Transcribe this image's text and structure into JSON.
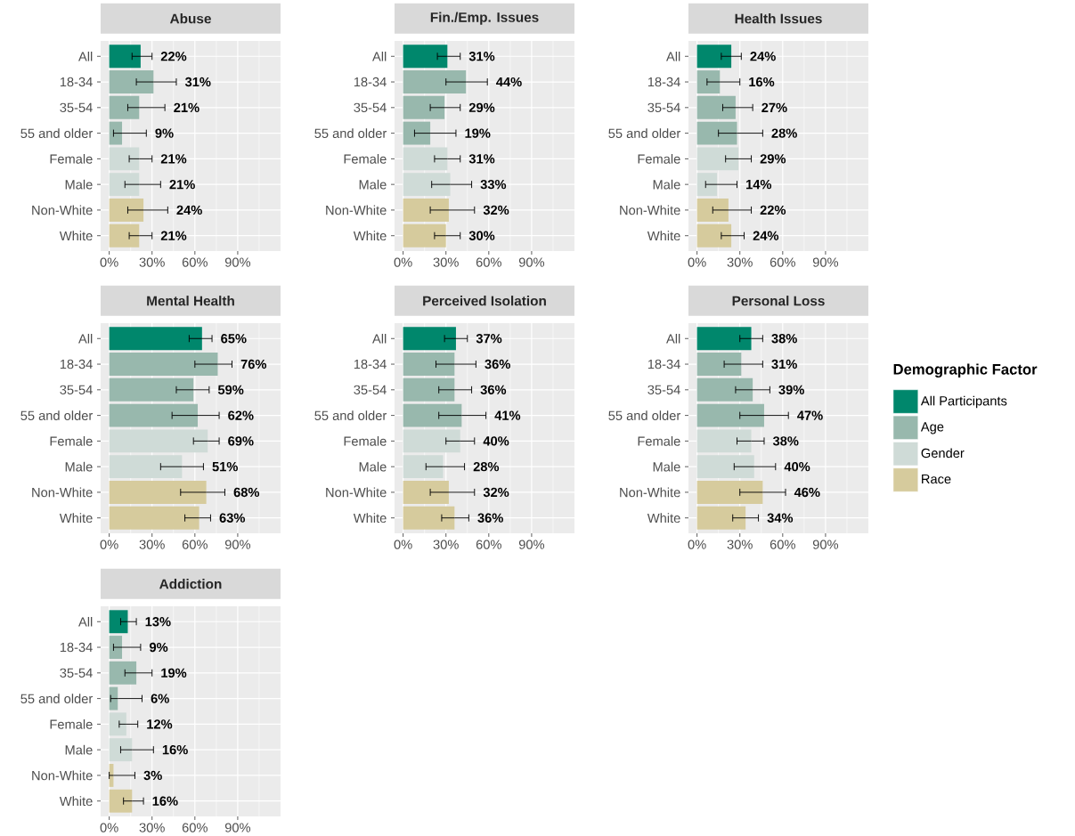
{
  "chart_data": [
    {
      "type": "bar",
      "orientation": "horizontal",
      "title": "Abuse",
      "categories": [
        "All",
        "18-34",
        "35-54",
        "55 and older",
        "Female",
        "Male",
        "Non-White",
        "White"
      ],
      "xlim": [
        -6,
        120
      ],
      "xticks": [
        {
          "value": 0,
          "label": "0%"
        },
        {
          "value": 30,
          "label": "30%"
        },
        {
          "value": 60,
          "label": "60%"
        },
        {
          "value": 90,
          "label": "90%"
        }
      ],
      "grid": true,
      "series": [
        {
          "color": "#00876c",
          "values": [
            22,
            null,
            null,
            null,
            null,
            null,
            null,
            null
          ],
          "errors": [
            [
              16,
              30
            ],
            null,
            null,
            null,
            null,
            null,
            null,
            null
          ],
          "value_labels": [
            "22%",
            null,
            null,
            null,
            null,
            null,
            null,
            null
          ]
        },
        {
          "color": "#98b8ad",
          "values": [
            null,
            31,
            21,
            9,
            null,
            null,
            null,
            null
          ],
          "errors": [
            null,
            [
              19,
              47
            ],
            [
              13,
              39
            ],
            [
              3,
              26
            ],
            null,
            null,
            null,
            null
          ],
          "value_labels": [
            null,
            "31%",
            "21%",
            "9%",
            null,
            null,
            null,
            null
          ]
        },
        {
          "color": "#cfdbd7",
          "values": [
            null,
            null,
            null,
            null,
            21,
            21,
            null,
            null
          ],
          "errors": [
            null,
            null,
            null,
            null,
            [
              14,
              30
            ],
            [
              11,
              36
            ],
            null,
            null
          ],
          "value_labels": [
            null,
            null,
            null,
            null,
            "21%",
            "21%",
            null,
            null
          ]
        },
        {
          "color": "#d6cb9d",
          "values": [
            null,
            null,
            null,
            null,
            null,
            null,
            24,
            21
          ],
          "errors": [
            null,
            null,
            null,
            null,
            null,
            null,
            [
              13,
              41
            ],
            [
              14,
              30
            ]
          ],
          "value_labels": [
            null,
            null,
            null,
            null,
            null,
            null,
            "24%",
            "21%"
          ]
        }
      ]
    },
    {
      "type": "bar",
      "orientation": "horizontal",
      "title": "Fin./Emp. Issues",
      "categories": [
        "All",
        "18-34",
        "35-54",
        "55 and older",
        "Female",
        "Male",
        "Non-White",
        "White"
      ],
      "xlim": [
        -6,
        120
      ],
      "xticks": [
        {
          "value": 0,
          "label": "0%"
        },
        {
          "value": 30,
          "label": "30%"
        },
        {
          "value": 60,
          "label": "60%"
        },
        {
          "value": 90,
          "label": "90%"
        }
      ],
      "grid": true,
      "series": [
        {
          "color": "#00876c",
          "values": [
            31,
            null,
            null,
            null,
            null,
            null,
            null,
            null
          ],
          "errors": [
            [
              24,
              40
            ],
            null,
            null,
            null,
            null,
            null,
            null,
            null
          ],
          "value_labels": [
            "31%",
            null,
            null,
            null,
            null,
            null,
            null,
            null
          ]
        },
        {
          "color": "#98b8ad",
          "values": [
            null,
            44,
            29,
            19,
            null,
            null,
            null,
            null
          ],
          "errors": [
            null,
            [
              30,
              59
            ],
            [
              19,
              40
            ],
            [
              8,
              37
            ],
            null,
            null,
            null,
            null
          ],
          "value_labels": [
            null,
            "44%",
            "29%",
            "19%",
            null,
            null,
            null,
            null
          ]
        },
        {
          "color": "#cfdbd7",
          "values": [
            null,
            null,
            null,
            null,
            31,
            33,
            null,
            null
          ],
          "errors": [
            null,
            null,
            null,
            null,
            [
              22,
              40
            ],
            [
              20,
              48
            ],
            null,
            null
          ],
          "value_labels": [
            null,
            null,
            null,
            null,
            "31%",
            "33%",
            null,
            null
          ]
        },
        {
          "color": "#d6cb9d",
          "values": [
            null,
            null,
            null,
            null,
            null,
            null,
            32,
            30
          ],
          "errors": [
            null,
            null,
            null,
            null,
            null,
            null,
            [
              19,
              50
            ],
            [
              22,
              40
            ]
          ],
          "value_labels": [
            null,
            null,
            null,
            null,
            null,
            null,
            "32%",
            "30%"
          ]
        }
      ]
    },
    {
      "type": "bar",
      "orientation": "horizontal",
      "title": "Health Issues",
      "categories": [
        "All",
        "18-34",
        "35-54",
        "55 and older",
        "Female",
        "Male",
        "Non-White",
        "White"
      ],
      "xlim": [
        -6,
        120
      ],
      "xticks": [
        {
          "value": 0,
          "label": "0%"
        },
        {
          "value": 30,
          "label": "30%"
        },
        {
          "value": 60,
          "label": "60%"
        },
        {
          "value": 90,
          "label": "90%"
        }
      ],
      "grid": true,
      "series": [
        {
          "color": "#00876c",
          "values": [
            24,
            null,
            null,
            null,
            null,
            null,
            null,
            null
          ],
          "errors": [
            [
              17,
              31
            ],
            null,
            null,
            null,
            null,
            null,
            null,
            null
          ],
          "value_labels": [
            "24%",
            null,
            null,
            null,
            null,
            null,
            null,
            null
          ]
        },
        {
          "color": "#98b8ad",
          "values": [
            null,
            16,
            27,
            28,
            null,
            null,
            null,
            null
          ],
          "errors": [
            null,
            [
              7,
              30
            ],
            [
              18,
              39
            ],
            [
              15,
              46
            ],
            null,
            null,
            null,
            null
          ],
          "value_labels": [
            null,
            "16%",
            "27%",
            "28%",
            null,
            null,
            null,
            null
          ]
        },
        {
          "color": "#cfdbd7",
          "values": [
            null,
            null,
            null,
            null,
            29,
            14,
            null,
            null
          ],
          "errors": [
            null,
            null,
            null,
            null,
            [
              20,
              38
            ],
            [
              6,
              28
            ],
            null,
            null
          ],
          "value_labels": [
            null,
            null,
            null,
            null,
            "29%",
            "14%",
            null,
            null
          ]
        },
        {
          "color": "#d6cb9d",
          "values": [
            null,
            null,
            null,
            null,
            null,
            null,
            22,
            24
          ],
          "errors": [
            null,
            null,
            null,
            null,
            null,
            null,
            [
              11,
              38
            ],
            [
              17,
              33
            ]
          ],
          "value_labels": [
            null,
            null,
            null,
            null,
            null,
            null,
            "22%",
            "24%"
          ]
        }
      ]
    },
    {
      "type": "bar",
      "orientation": "horizontal",
      "title": "Mental Health",
      "categories": [
        "All",
        "18-34",
        "35-54",
        "55 and older",
        "Female",
        "Male",
        "Non-White",
        "White"
      ],
      "xlim": [
        -6,
        120
      ],
      "xticks": [
        {
          "value": 0,
          "label": "0%"
        },
        {
          "value": 30,
          "label": "30%"
        },
        {
          "value": 60,
          "label": "60%"
        },
        {
          "value": 90,
          "label": "90%"
        }
      ],
      "grid": true,
      "series": [
        {
          "color": "#00876c",
          "values": [
            65,
            null,
            null,
            null,
            null,
            null,
            null,
            null
          ],
          "errors": [
            [
              56,
              72
            ],
            null,
            null,
            null,
            null,
            null,
            null,
            null
          ],
          "value_labels": [
            "65%",
            null,
            null,
            null,
            null,
            null,
            null,
            null
          ]
        },
        {
          "color": "#98b8ad",
          "values": [
            null,
            76,
            59,
            62,
            null,
            null,
            null,
            null
          ],
          "errors": [
            null,
            [
              60,
              86
            ],
            [
              47,
              70
            ],
            [
              44,
              77
            ],
            null,
            null,
            null,
            null
          ],
          "value_labels": [
            null,
            "76%",
            "59%",
            "62%",
            null,
            null,
            null,
            null
          ]
        },
        {
          "color": "#cfdbd7",
          "values": [
            null,
            null,
            null,
            null,
            69,
            51,
            null,
            null
          ],
          "errors": [
            null,
            null,
            null,
            null,
            [
              59,
              77
            ],
            [
              36,
              66
            ],
            null,
            null
          ],
          "value_labels": [
            null,
            null,
            null,
            null,
            "69%",
            "51%",
            null,
            null
          ]
        },
        {
          "color": "#d6cb9d",
          "values": [
            null,
            null,
            null,
            null,
            null,
            null,
            68,
            63
          ],
          "errors": [
            null,
            null,
            null,
            null,
            null,
            null,
            [
              50,
              81
            ],
            [
              53,
              71
            ]
          ],
          "value_labels": [
            null,
            null,
            null,
            null,
            null,
            null,
            "68%",
            "63%"
          ]
        }
      ]
    },
    {
      "type": "bar",
      "orientation": "horizontal",
      "title": "Perceived Isolation",
      "categories": [
        "All",
        "18-34",
        "35-54",
        "55 and older",
        "Female",
        "Male",
        "Non-White",
        "White"
      ],
      "xlim": [
        -6,
        120
      ],
      "xticks": [
        {
          "value": 0,
          "label": "0%"
        },
        {
          "value": 30,
          "label": "30%"
        },
        {
          "value": 60,
          "label": "60%"
        },
        {
          "value": 90,
          "label": "90%"
        }
      ],
      "grid": true,
      "series": [
        {
          "color": "#00876c",
          "values": [
            37,
            null,
            null,
            null,
            null,
            null,
            null,
            null
          ],
          "errors": [
            [
              29,
              45
            ],
            null,
            null,
            null,
            null,
            null,
            null,
            null
          ],
          "value_labels": [
            "37%",
            null,
            null,
            null,
            null,
            null,
            null,
            null
          ]
        },
        {
          "color": "#98b8ad",
          "values": [
            null,
            36,
            36,
            41,
            null,
            null,
            null,
            null
          ],
          "errors": [
            null,
            [
              23,
              51
            ],
            [
              25,
              48
            ],
            [
              25,
              58
            ],
            null,
            null,
            null,
            null
          ],
          "value_labels": [
            null,
            "36%",
            "36%",
            "41%",
            null,
            null,
            null,
            null
          ]
        },
        {
          "color": "#cfdbd7",
          "values": [
            null,
            null,
            null,
            null,
            40,
            28,
            null,
            null
          ],
          "errors": [
            null,
            null,
            null,
            null,
            [
              30,
              50
            ],
            [
              16,
              43
            ],
            null,
            null
          ],
          "value_labels": [
            null,
            null,
            null,
            null,
            "40%",
            "28%",
            null,
            null
          ]
        },
        {
          "color": "#d6cb9d",
          "values": [
            null,
            null,
            null,
            null,
            null,
            null,
            32,
            36
          ],
          "errors": [
            null,
            null,
            null,
            null,
            null,
            null,
            [
              19,
              50
            ],
            [
              27,
              46
            ]
          ],
          "value_labels": [
            null,
            null,
            null,
            null,
            null,
            null,
            "32%",
            "36%"
          ]
        }
      ]
    },
    {
      "type": "bar",
      "orientation": "horizontal",
      "title": "Personal Loss",
      "categories": [
        "All",
        "18-34",
        "35-54",
        "55 and older",
        "Female",
        "Male",
        "Non-White",
        "White"
      ],
      "xlim": [
        -6,
        120
      ],
      "xticks": [
        {
          "value": 0,
          "label": "0%"
        },
        {
          "value": 30,
          "label": "30%"
        },
        {
          "value": 60,
          "label": "60%"
        },
        {
          "value": 90,
          "label": "90%"
        }
      ],
      "grid": true,
      "legend": "right",
      "legend_title": "Demographic Factor",
      "series": [
        {
          "name": "All Participants",
          "color": "#00876c",
          "values": [
            38,
            null,
            null,
            null,
            null,
            null,
            null,
            null
          ],
          "errors": [
            [
              30,
              46
            ],
            null,
            null,
            null,
            null,
            null,
            null,
            null
          ],
          "value_labels": [
            "38%",
            null,
            null,
            null,
            null,
            null,
            null,
            null
          ]
        },
        {
          "name": "Age",
          "color": "#98b8ad",
          "values": [
            null,
            31,
            39,
            47,
            null,
            null,
            null,
            null
          ],
          "errors": [
            null,
            [
              19,
              46
            ],
            [
              27,
              51
            ],
            [
              30,
              64
            ],
            null,
            null,
            null,
            null
          ],
          "value_labels": [
            null,
            "31%",
            "39%",
            "47%",
            null,
            null,
            null,
            null
          ]
        },
        {
          "name": "Gender",
          "color": "#cfdbd7",
          "values": [
            null,
            null,
            null,
            null,
            38,
            40,
            null,
            null
          ],
          "errors": [
            null,
            null,
            null,
            null,
            [
              28,
              47
            ],
            [
              26,
              55
            ],
            null,
            null
          ],
          "value_labels": [
            null,
            null,
            null,
            null,
            "38%",
            "40%",
            null,
            null
          ]
        },
        {
          "name": "Race",
          "color": "#d6cb9d",
          "values": [
            null,
            null,
            null,
            null,
            null,
            null,
            46,
            34
          ],
          "errors": [
            null,
            null,
            null,
            null,
            null,
            null,
            [
              30,
              62
            ],
            [
              25,
              43
            ]
          ],
          "value_labels": [
            null,
            null,
            null,
            null,
            null,
            null,
            "46%",
            "34%"
          ]
        }
      ]
    },
    {
      "type": "bar",
      "orientation": "horizontal",
      "title": "Addiction",
      "categories": [
        "All",
        "18-34",
        "35-54",
        "55 and older",
        "Female",
        "Male",
        "Non-White",
        "White"
      ],
      "xlim": [
        -6,
        120
      ],
      "xticks": [
        {
          "value": 0,
          "label": "0%"
        },
        {
          "value": 30,
          "label": "30%"
        },
        {
          "value": 60,
          "label": "60%"
        },
        {
          "value": 90,
          "label": "90%"
        }
      ],
      "grid": true,
      "series": [
        {
          "color": "#00876c",
          "values": [
            13,
            null,
            null,
            null,
            null,
            null,
            null,
            null
          ],
          "errors": [
            [
              8,
              19
            ],
            null,
            null,
            null,
            null,
            null,
            null,
            null
          ],
          "value_labels": [
            "13%",
            null,
            null,
            null,
            null,
            null,
            null,
            null
          ]
        },
        {
          "color": "#98b8ad",
          "values": [
            null,
            9,
            19,
            6,
            null,
            null,
            null,
            null
          ],
          "errors": [
            null,
            [
              3,
              22
            ],
            [
              11,
              30
            ],
            [
              1,
              23
            ],
            null,
            null,
            null,
            null
          ],
          "value_labels": [
            null,
            "9%",
            "19%",
            "6%",
            null,
            null,
            null,
            null
          ]
        },
        {
          "color": "#cfdbd7",
          "values": [
            null,
            null,
            null,
            null,
            12,
            16,
            null,
            null
          ],
          "errors": [
            null,
            null,
            null,
            null,
            [
              7,
              20
            ],
            [
              8,
              31
            ],
            null,
            null
          ],
          "value_labels": [
            null,
            null,
            null,
            null,
            "12%",
            "16%",
            null,
            null
          ]
        },
        {
          "color": "#d6cb9d",
          "values": [
            null,
            null,
            null,
            null,
            null,
            null,
            3,
            16
          ],
          "errors": [
            null,
            null,
            null,
            null,
            null,
            null,
            [
              0,
              18
            ],
            [
              10,
              24
            ]
          ],
          "value_labels": [
            null,
            null,
            null,
            null,
            null,
            null,
            "3%",
            "16%"
          ]
        }
      ]
    }
  ]
}
